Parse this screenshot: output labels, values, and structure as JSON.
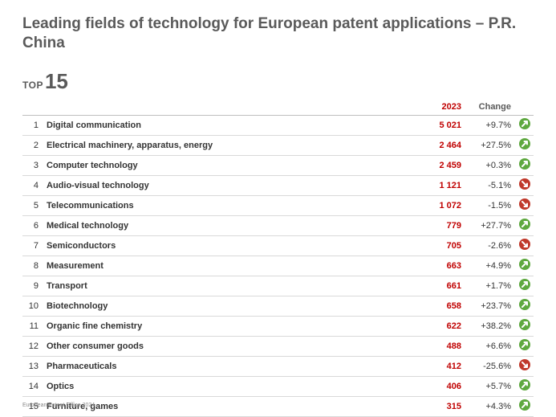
{
  "title": "Leading fields of technology for European patent applications – P.R. China",
  "top_label": "TOP",
  "top_number": "15",
  "footer": "European Patent Office 2024",
  "colors": {
    "up": "#5ea83f",
    "down": "#c0392b",
    "arrow_fill": "#ffffff",
    "value_2023": "#c00000",
    "text": "#333333",
    "heading": "#5a5a5a",
    "row_border": "#d9d9d9",
    "header_border": "#bfbfbf"
  },
  "table": {
    "type": "table",
    "headers": {
      "rank": "",
      "field": "",
      "v2023": "2023",
      "change": "Change",
      "icon": ""
    },
    "rows": [
      {
        "rank": "1",
        "field": "Digital communication",
        "v2023": "5 021",
        "change": "+9.7%",
        "dir": "up"
      },
      {
        "rank": "2",
        "field": "Electrical machinery, apparatus, energy",
        "v2023": "2 464",
        "change": "+27.5%",
        "dir": "up"
      },
      {
        "rank": "3",
        "field": "Computer technology",
        "v2023": "2 459",
        "change": "+0.3%",
        "dir": "up"
      },
      {
        "rank": "4",
        "field": "Audio-visual technology",
        "v2023": "1 121",
        "change": "-5.1%",
        "dir": "down"
      },
      {
        "rank": "5",
        "field": "Telecommunications",
        "v2023": "1 072",
        "change": "-1.5%",
        "dir": "down"
      },
      {
        "rank": "6",
        "field": "Medical technology",
        "v2023": "779",
        "change": "+27.7%",
        "dir": "up"
      },
      {
        "rank": "7",
        "field": "Semiconductors",
        "v2023": "705",
        "change": "-2.6%",
        "dir": "down"
      },
      {
        "rank": "8",
        "field": "Measurement",
        "v2023": "663",
        "change": "+4.9%",
        "dir": "up"
      },
      {
        "rank": "9",
        "field": "Transport",
        "v2023": "661",
        "change": "+1.7%",
        "dir": "up"
      },
      {
        "rank": "10",
        "field": "Biotechnology",
        "v2023": "658",
        "change": "+23.7%",
        "dir": "up"
      },
      {
        "rank": "11",
        "field": "Organic fine chemistry",
        "v2023": "622",
        "change": "+38.2%",
        "dir": "up"
      },
      {
        "rank": "12",
        "field": "Other consumer goods",
        "v2023": "488",
        "change": "+6.6%",
        "dir": "up"
      },
      {
        "rank": "13",
        "field": "Pharmaceuticals",
        "v2023": "412",
        "change": "-25.6%",
        "dir": "down"
      },
      {
        "rank": "14",
        "field": "Optics",
        "v2023": "406",
        "change": "+5.7%",
        "dir": "up"
      },
      {
        "rank": "15",
        "field": "Furniture, games",
        "v2023": "315",
        "change": "+4.3%",
        "dir": "up"
      }
    ]
  }
}
